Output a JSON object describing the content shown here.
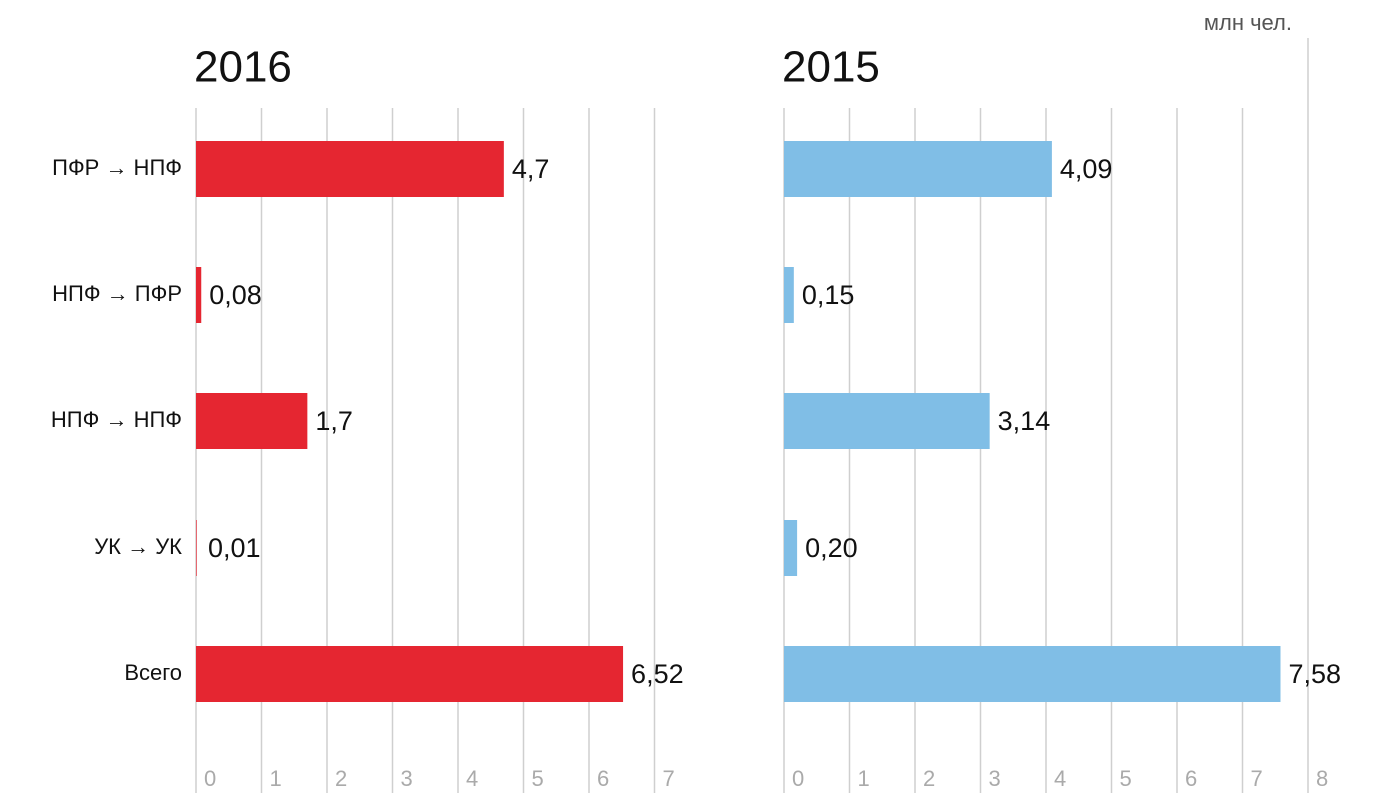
{
  "unit": "млн чел.",
  "chart_data": [
    {
      "type": "bar",
      "title": "2016",
      "categories": [
        "ПФР → НПФ",
        "НПФ → ПФР",
        "НПФ → НПФ",
        "УК → УК",
        "Всего"
      ],
      "values": [
        4.7,
        0.08,
        1.7,
        0.01,
        6.52
      ],
      "value_labels": [
        "4,7",
        "0,08",
        "1,7",
        "0,01",
        "6,52"
      ],
      "color": "#e52631",
      "xlim": [
        0,
        7
      ],
      "xticks": [
        0,
        1,
        2,
        3,
        4,
        5,
        6,
        7
      ],
      "grid": true
    },
    {
      "type": "bar",
      "title": "2015",
      "values": [
        4.09,
        0.15,
        3.14,
        0.2,
        7.58
      ],
      "value_labels": [
        "4,09",
        "0,15",
        "3,14",
        "0,20",
        "7,58"
      ],
      "color": "#80bee6",
      "xlim": [
        0,
        8
      ],
      "xticks": [
        0,
        1,
        2,
        3,
        4,
        5,
        6,
        7,
        8
      ],
      "grid": true
    }
  ]
}
